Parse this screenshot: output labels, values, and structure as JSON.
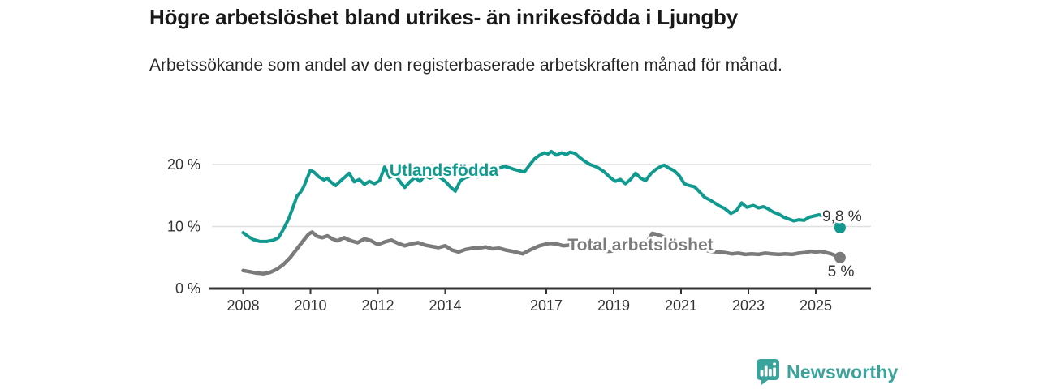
{
  "chart_data": {
    "type": "line",
    "title": "Högre arbetslöshet bland utrikes- än inrikesfödda i Ljungby",
    "subtitle": "Arbetssökande som andel av den registerbaserade arbetskraften månad för månad.",
    "unit": "%",
    "legend_position": "inline-labels-on-lines",
    "x_axis": {
      "ticks": [
        2008,
        2010,
        2012,
        2014,
        2017,
        2019,
        2021,
        2023,
        2025
      ],
      "range_years": [
        2007.0,
        2026.6
      ]
    },
    "y_axis": {
      "ticks": [
        {
          "value": 0,
          "label": "0 %"
        },
        {
          "value": 10,
          "label": "10 %"
        },
        {
          "value": 20,
          "label": "20 %"
        }
      ],
      "range": [
        0,
        24
      ],
      "gridlines": true,
      "gridline_color": "#e0e0e0"
    },
    "series": [
      {
        "name": "Utlandsfödda",
        "color": "#109a8f",
        "end_label": "9,8 %",
        "end_value": 9.8,
        "points": [
          [
            2008.0,
            9.0
          ],
          [
            2008.15,
            8.4
          ],
          [
            2008.3,
            7.9
          ],
          [
            2008.5,
            7.6
          ],
          [
            2008.7,
            7.6
          ],
          [
            2008.9,
            7.8
          ],
          [
            2009.05,
            8.2
          ],
          [
            2009.2,
            9.6
          ],
          [
            2009.35,
            11.2
          ],
          [
            2009.5,
            13.4
          ],
          [
            2009.6,
            14.9
          ],
          [
            2009.7,
            15.5
          ],
          [
            2009.8,
            16.4
          ],
          [
            2009.9,
            17.8
          ],
          [
            2010.0,
            19.1
          ],
          [
            2010.1,
            18.8
          ],
          [
            2010.25,
            18.0
          ],
          [
            2010.4,
            17.5
          ],
          [
            2010.5,
            17.8
          ],
          [
            2010.6,
            17.2
          ],
          [
            2010.75,
            16.6
          ],
          [
            2010.9,
            17.4
          ],
          [
            2011.05,
            18.1
          ],
          [
            2011.15,
            18.6
          ],
          [
            2011.3,
            17.2
          ],
          [
            2011.45,
            17.6
          ],
          [
            2011.6,
            16.8
          ],
          [
            2011.75,
            17.3
          ],
          [
            2011.9,
            16.9
          ],
          [
            2012.05,
            17.4
          ],
          [
            2012.2,
            19.6
          ],
          [
            2012.35,
            17.9
          ],
          [
            2012.5,
            18.4
          ],
          [
            2012.65,
            17.3
          ],
          [
            2012.8,
            16.3
          ],
          [
            2012.95,
            17.2
          ],
          [
            2013.1,
            17.9
          ],
          [
            2013.25,
            17.3
          ],
          [
            2013.4,
            18.2
          ],
          [
            2013.55,
            17.8
          ],
          [
            2013.7,
            18.3
          ],
          [
            2013.85,
            17.9
          ],
          [
            2014.0,
            17.3
          ],
          [
            2014.15,
            16.4
          ],
          [
            2014.3,
            15.7
          ],
          [
            2014.45,
            17.4
          ],
          [
            2014.6,
            17.9
          ],
          [
            2014.8,
            18.2
          ],
          [
            2014.95,
            18.0
          ],
          [
            2015.1,
            18.5
          ],
          [
            2015.3,
            19.0
          ],
          [
            2015.45,
            18.8
          ],
          [
            2015.6,
            19.4
          ],
          [
            2015.75,
            19.7
          ],
          [
            2015.9,
            19.5
          ],
          [
            2016.05,
            19.2
          ],
          [
            2016.2,
            19.0
          ],
          [
            2016.35,
            18.8
          ],
          [
            2016.5,
            19.9
          ],
          [
            2016.65,
            20.9
          ],
          [
            2016.8,
            21.5
          ],
          [
            2016.95,
            21.9
          ],
          [
            2017.05,
            21.7
          ],
          [
            2017.15,
            22.1
          ],
          [
            2017.3,
            21.5
          ],
          [
            2017.45,
            21.9
          ],
          [
            2017.6,
            21.6
          ],
          [
            2017.7,
            22.0
          ],
          [
            2017.85,
            21.8
          ],
          [
            2018.0,
            21.1
          ],
          [
            2018.15,
            20.5
          ],
          [
            2018.3,
            20.0
          ],
          [
            2018.5,
            19.6
          ],
          [
            2018.7,
            18.9
          ],
          [
            2018.9,
            17.9
          ],
          [
            2019.05,
            17.3
          ],
          [
            2019.2,
            17.6
          ],
          [
            2019.35,
            16.9
          ],
          [
            2019.5,
            17.6
          ],
          [
            2019.65,
            18.6
          ],
          [
            2019.8,
            17.8
          ],
          [
            2019.95,
            17.4
          ],
          [
            2020.1,
            18.5
          ],
          [
            2020.25,
            19.2
          ],
          [
            2020.4,
            19.7
          ],
          [
            2020.5,
            19.9
          ],
          [
            2020.65,
            19.4
          ],
          [
            2020.8,
            19.0
          ],
          [
            2020.95,
            18.2
          ],
          [
            2021.1,
            16.9
          ],
          [
            2021.25,
            16.6
          ],
          [
            2021.4,
            16.4
          ],
          [
            2021.55,
            15.6
          ],
          [
            2021.7,
            14.7
          ],
          [
            2021.85,
            14.3
          ],
          [
            2022.0,
            13.8
          ],
          [
            2022.15,
            13.3
          ],
          [
            2022.3,
            12.9
          ],
          [
            2022.48,
            12.1
          ],
          [
            2022.65,
            12.6
          ],
          [
            2022.8,
            13.8
          ],
          [
            2022.95,
            13.1
          ],
          [
            2023.15,
            13.4
          ],
          [
            2023.3,
            13.0
          ],
          [
            2023.45,
            13.2
          ],
          [
            2023.6,
            12.8
          ],
          [
            2023.75,
            12.3
          ],
          [
            2023.9,
            12.0
          ],
          [
            2024.05,
            11.5
          ],
          [
            2024.2,
            11.2
          ],
          [
            2024.35,
            10.9
          ],
          [
            2024.5,
            11.1
          ],
          [
            2024.65,
            11.0
          ],
          [
            2024.8,
            11.5
          ],
          [
            2024.95,
            11.7
          ],
          [
            2025.1,
            11.9
          ],
          [
            2025.25,
            11.6
          ],
          [
            2025.4,
            11.2
          ],
          [
            2025.55,
            10.6
          ],
          [
            2025.72,
            9.8
          ]
        ]
      },
      {
        "name": "Total arbetslöshet",
        "color": "#7b7b7b",
        "end_label": "5 %",
        "end_value": 5.0,
        "points": [
          [
            2008.0,
            2.9
          ],
          [
            2008.2,
            2.7
          ],
          [
            2008.4,
            2.5
          ],
          [
            2008.6,
            2.4
          ],
          [
            2008.8,
            2.6
          ],
          [
            2009.0,
            3.1
          ],
          [
            2009.2,
            3.9
          ],
          [
            2009.4,
            5.0
          ],
          [
            2009.6,
            6.4
          ],
          [
            2009.8,
            7.8
          ],
          [
            2009.95,
            8.8
          ],
          [
            2010.05,
            9.1
          ],
          [
            2010.2,
            8.4
          ],
          [
            2010.35,
            8.2
          ],
          [
            2010.5,
            8.5
          ],
          [
            2010.65,
            8.0
          ],
          [
            2010.8,
            7.7
          ],
          [
            2011.0,
            8.2
          ],
          [
            2011.2,
            7.7
          ],
          [
            2011.4,
            7.4
          ],
          [
            2011.6,
            8.0
          ],
          [
            2011.8,
            7.7
          ],
          [
            2012.0,
            7.1
          ],
          [
            2012.2,
            7.5
          ],
          [
            2012.4,
            7.8
          ],
          [
            2012.6,
            7.3
          ],
          [
            2012.8,
            6.9
          ],
          [
            2013.0,
            7.2
          ],
          [
            2013.2,
            7.4
          ],
          [
            2013.4,
            7.0
          ],
          [
            2013.6,
            6.8
          ],
          [
            2013.8,
            6.6
          ],
          [
            2014.0,
            6.9
          ],
          [
            2014.2,
            6.2
          ],
          [
            2014.4,
            5.9
          ],
          [
            2014.6,
            6.3
          ],
          [
            2014.8,
            6.5
          ],
          [
            2015.0,
            6.5
          ],
          [
            2015.2,
            6.7
          ],
          [
            2015.4,
            6.4
          ],
          [
            2015.6,
            6.5
          ],
          [
            2015.8,
            6.2
          ],
          [
            2016.0,
            6.0
          ],
          [
            2016.3,
            5.6
          ],
          [
            2016.55,
            6.3
          ],
          [
            2016.8,
            6.9
          ],
          [
            2017.1,
            7.3
          ],
          [
            2017.3,
            7.2
          ],
          [
            2017.5,
            6.9
          ],
          [
            2017.7,
            7.0
          ],
          [
            2017.9,
            6.8
          ],
          [
            2018.1,
            6.5
          ],
          [
            2018.35,
            6.3
          ],
          [
            2018.6,
            6.1
          ],
          [
            2018.85,
            6.0
          ],
          [
            2019.1,
            6.1
          ],
          [
            2019.35,
            6.2
          ],
          [
            2019.6,
            6.4
          ],
          [
            2019.85,
            6.8
          ],
          [
            2020.0,
            7.6
          ],
          [
            2020.15,
            8.9
          ],
          [
            2020.3,
            8.7
          ],
          [
            2020.5,
            8.3
          ],
          [
            2020.7,
            7.9
          ],
          [
            2020.9,
            7.5
          ],
          [
            2021.1,
            7.1
          ],
          [
            2021.3,
            6.8
          ],
          [
            2021.5,
            6.5
          ],
          [
            2021.7,
            6.2
          ],
          [
            2021.9,
            6.0
          ],
          [
            2022.1,
            5.9
          ],
          [
            2022.3,
            5.8
          ],
          [
            2022.5,
            5.6
          ],
          [
            2022.7,
            5.7
          ],
          [
            2022.9,
            5.5
          ],
          [
            2023.1,
            5.6
          ],
          [
            2023.3,
            5.5
          ],
          [
            2023.5,
            5.7
          ],
          [
            2023.7,
            5.6
          ],
          [
            2023.9,
            5.5
          ],
          [
            2024.1,
            5.6
          ],
          [
            2024.3,
            5.5
          ],
          [
            2024.5,
            5.7
          ],
          [
            2024.7,
            5.8
          ],
          [
            2024.85,
            6.0
          ],
          [
            2025.0,
            5.9
          ],
          [
            2025.15,
            6.0
          ],
          [
            2025.3,
            5.8
          ],
          [
            2025.45,
            5.6
          ],
          [
            2025.6,
            5.3
          ],
          [
            2025.72,
            5.0
          ]
        ]
      }
    ]
  },
  "branding": {
    "name": "Newsworthy",
    "accent_color": "#3aa39c",
    "icon": "newsworthy-speech-bubble-bar-chart"
  }
}
